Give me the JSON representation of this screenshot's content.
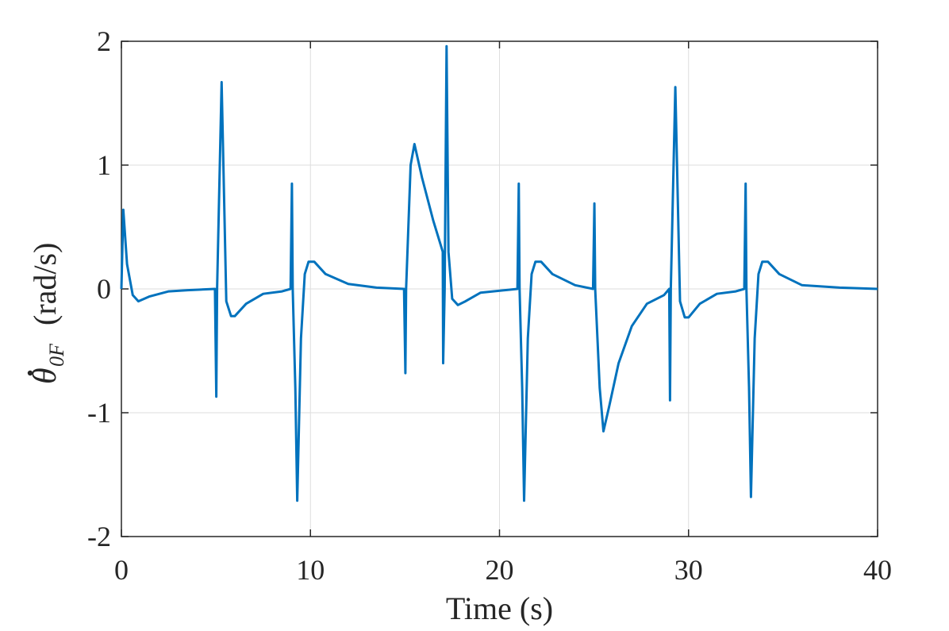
{
  "chart_data": {
    "type": "line",
    "title": "",
    "xlabel": "Time (s)",
    "ylabel": {
      "symbol": "θ",
      "subscript": "0F",
      "unit": "(rad/s)"
    },
    "xlim": [
      0,
      40
    ],
    "ylim": [
      -2,
      2
    ],
    "xticks": [
      0,
      10,
      20,
      30,
      40
    ],
    "yticks": [
      -2,
      -1,
      0,
      1,
      2
    ],
    "xtick_labels": [
      "0",
      "10",
      "20",
      "30",
      "40"
    ],
    "ytick_labels": [
      "-2",
      "-1",
      "0",
      "1",
      "2"
    ],
    "grid": true,
    "series": [
      {
        "color": "#0072BD",
        "x": [
          0,
          0.1,
          0.3,
          0.6,
          0.9,
          1.5,
          2.5,
          3.5,
          4.95,
          5.02,
          5.06,
          5.3,
          5.55,
          5.8,
          6.0,
          6.6,
          7.5,
          8.5,
          8.95,
          9.02,
          9.06,
          9.2,
          9.3,
          9.5,
          9.7,
          9.9,
          10.2,
          10.8,
          12,
          13.5,
          14.95,
          15.02,
          15.06,
          15.3,
          15.5,
          15.9,
          16.5,
          17.0,
          17.02,
          17.1,
          17.2,
          17.3,
          17.5,
          17.8,
          18.2,
          19,
          20.95,
          21.02,
          21.06,
          21.2,
          21.3,
          21.5,
          21.7,
          21.9,
          22.2,
          22.8,
          24,
          24.95,
          25.02,
          25.06,
          25.3,
          25.5,
          25.8,
          26.3,
          27,
          27.8,
          28.7,
          28.98,
          29.02,
          29.06,
          29.3,
          29.55,
          29.8,
          30.0,
          30.6,
          31.5,
          32.5,
          32.95,
          33.02,
          33.06,
          33.2,
          33.3,
          33.5,
          33.7,
          33.9,
          34.2,
          34.8,
          36,
          38,
          40
        ],
        "y": [
          0,
          0.64,
          0.2,
          -0.05,
          -0.1,
          -0.06,
          -0.02,
          -0.01,
          0,
          -0.87,
          0,
          1.67,
          -0.1,
          -0.22,
          -0.22,
          -0.12,
          -0.04,
          -0.02,
          0,
          0.85,
          0,
          -0.8,
          -1.71,
          -0.4,
          0.12,
          0.22,
          0.22,
          0.12,
          0.04,
          0.01,
          0,
          -0.68,
          0,
          1.0,
          1.17,
          0.9,
          0.55,
          0.3,
          -0.6,
          0,
          1.96,
          0.3,
          -0.08,
          -0.13,
          -0.1,
          -0.03,
          0,
          0.85,
          0,
          -0.8,
          -1.71,
          -0.4,
          0.12,
          0.22,
          0.22,
          0.12,
          0.03,
          0,
          0.69,
          0,
          -0.8,
          -1.15,
          -0.95,
          -0.6,
          -0.3,
          -0.12,
          -0.05,
          0,
          -0.9,
          0,
          1.63,
          -0.1,
          -0.23,
          -0.23,
          -0.12,
          -0.04,
          -0.02,
          0,
          0.85,
          0,
          -0.8,
          -1.68,
          -0.4,
          0.12,
          0.22,
          0.22,
          0.12,
          0.03,
          0.01,
          0
        ]
      }
    ]
  }
}
